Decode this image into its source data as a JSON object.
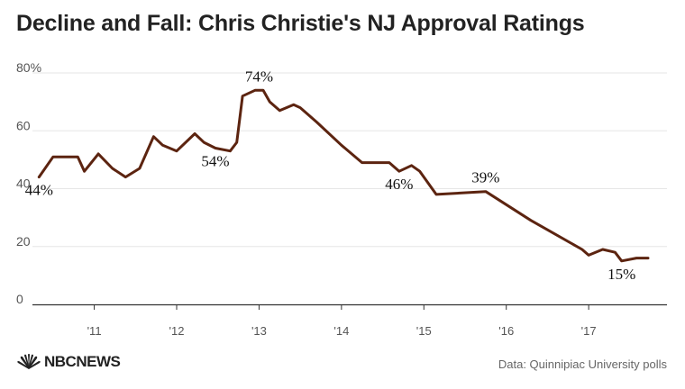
{
  "title": "Decline and Fall: Chris Christie's NJ Approval Ratings",
  "source": "Data: Quinnipiac University polls",
  "logo": {
    "text": "NBCNEWS",
    "icon": "nbc-peacock-icon"
  },
  "colors": {
    "line": "#5c2410",
    "grid": "#e6e6e6",
    "axis": "#333333",
    "tick_text": "#555555"
  },
  "chart_data": {
    "type": "line",
    "title": "Decline and Fall: Chris Christie's NJ Approval Ratings",
    "xlabel": "",
    "ylabel": "",
    "ylim": [
      0,
      80
    ],
    "xlim": [
      2010.25,
      2017.95
    ],
    "y_ticks": [
      0,
      20,
      40,
      60,
      80
    ],
    "y_tick_labels": [
      "0",
      "20",
      "40",
      "60",
      "80%"
    ],
    "x_ticks": [
      2011,
      2012,
      2013,
      2014,
      2015,
      2016,
      2017
    ],
    "x_tick_labels": [
      "'11",
      "'12",
      "'13",
      "'14",
      "'15",
      "'16",
      "'17"
    ],
    "grid": true,
    "series": [
      {
        "x": [
          2010.33,
          2010.5,
          2010.63,
          2010.8,
          2010.88,
          2011.05,
          2011.22,
          2011.38,
          2011.55,
          2011.72,
          2011.83,
          2012.0,
          2012.22,
          2012.33,
          2012.47,
          2012.65,
          2012.73,
          2012.8,
          2012.95,
          2013.05,
          2013.13,
          2013.25,
          2013.42,
          2013.5,
          2013.7,
          2014.0,
          2014.25,
          2014.58,
          2014.7,
          2014.85,
          2014.95,
          2015.15,
          2015.75,
          2016.3,
          2016.92,
          2017.0,
          2017.17,
          2017.32,
          2017.4,
          2017.58,
          2017.72
        ],
        "y": [
          44,
          51,
          51,
          51,
          46,
          52,
          47,
          44,
          47,
          58,
          55,
          53,
          59,
          56,
          54,
          53,
          56,
          72,
          74,
          74,
          70,
          67,
          69,
          68,
          63,
          55,
          49,
          49,
          46,
          48,
          46,
          38,
          39,
          29,
          19,
          17,
          19,
          18,
          15,
          16,
          16
        ]
      }
    ],
    "annotations": [
      {
        "text": "44%",
        "x": 2010.33,
        "y": 44,
        "position": "below"
      },
      {
        "text": "54%",
        "x": 2012.47,
        "y": 54,
        "position": "below"
      },
      {
        "text": "74%",
        "x": 2013.0,
        "y": 74,
        "position": "above"
      },
      {
        "text": "46%",
        "x": 2014.7,
        "y": 46,
        "position": "below"
      },
      {
        "text": "39%",
        "x": 2015.75,
        "y": 39,
        "position": "above"
      },
      {
        "text": "15%",
        "x": 2017.4,
        "y": 15,
        "position": "below"
      }
    ]
  }
}
